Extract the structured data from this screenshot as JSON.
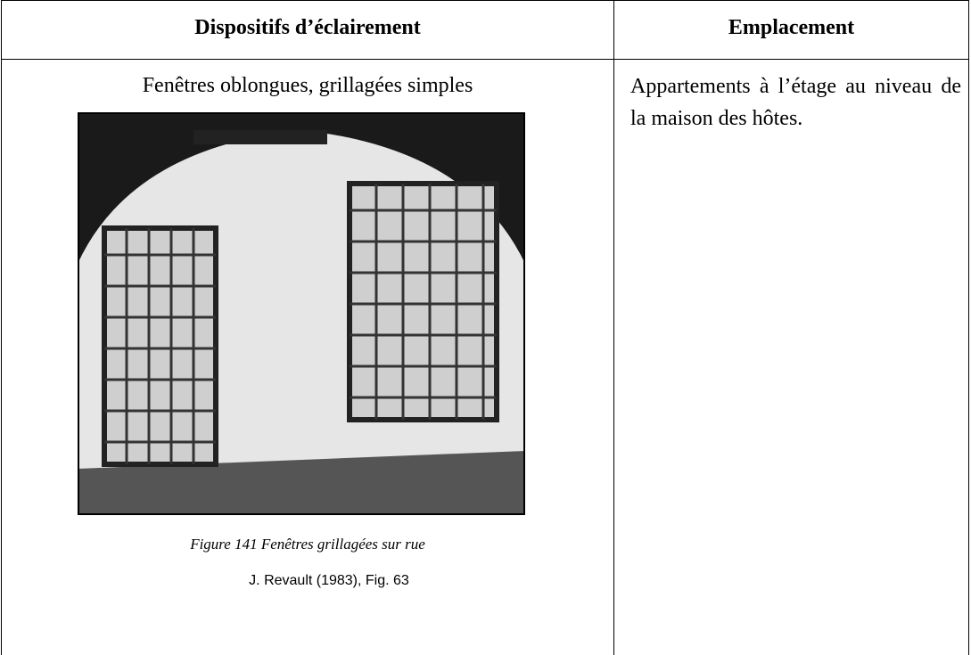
{
  "table": {
    "headers": [
      "Dispositifs d’éclairement",
      "Emplacement"
    ],
    "rows": [
      [
        {
          "text": "Fenêtres oblongues, grillagées simples",
          "figure": {
            "caption": "Figure 141 Fenêtres grillagées sur rue",
            "source": "J. Revault (1983), Fig. 63"
          }
        },
        "Appartements à l’étage au niveau de la maison des hôtes."
      ]
    ]
  }
}
